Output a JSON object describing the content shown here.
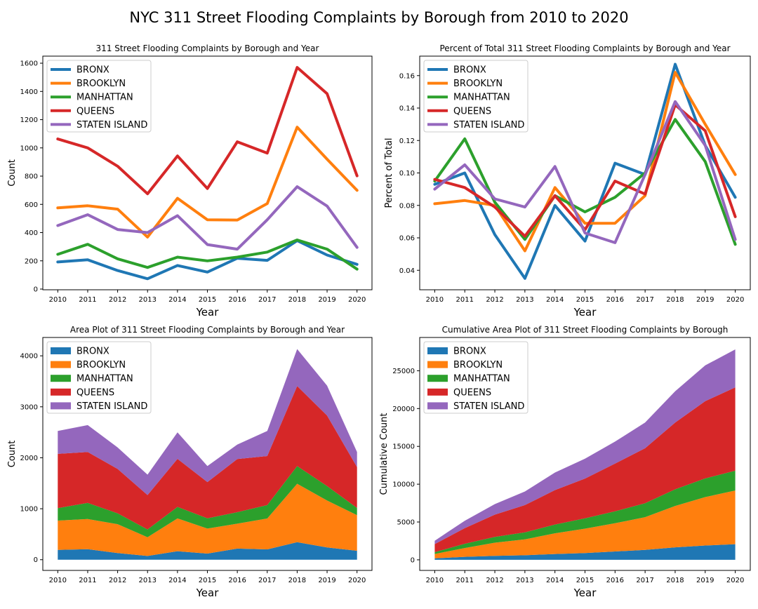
{
  "suptitle": "NYC 311 Street Flooding Complaints by Borough from 2010 to 2020",
  "colors": {
    "BRONX": "#1f77b4",
    "BROOKLYN": "#ff7f0e",
    "MANHATTAN": "#2ca02c",
    "QUEENS": "#d62728",
    "STATEN ISLAND": "#9467bd"
  },
  "chart_data": [
    {
      "type": "line",
      "title": "311 Street Flooding Complaints by Borough and Year",
      "xlabel": "Year",
      "ylabel": "Count",
      "x": [
        2010,
        2011,
        2012,
        2013,
        2014,
        2015,
        2016,
        2017,
        2018,
        2019,
        2020
      ],
      "xlim": [
        2009.5,
        2020.5
      ],
      "ylim": [
        -5,
        1650
      ],
      "yticks": [
        0,
        200,
        400,
        600,
        800,
        1000,
        1200,
        1400,
        1600
      ],
      "legend": "upper left",
      "series": [
        {
          "name": "BRONX",
          "values": [
            192,
            207,
            131,
            73,
            167,
            120,
            218,
            203,
            343,
            241,
            175
          ]
        },
        {
          "name": "BROOKLYN",
          "values": [
            575,
            590,
            566,
            368,
            643,
            491,
            489,
            606,
            1147,
            920,
            699
          ]
        },
        {
          "name": "MANHATTAN",
          "values": [
            246,
            317,
            214,
            153,
            226,
            200,
            226,
            262,
            348,
            283,
            141
          ]
        },
        {
          "name": "QUEENS",
          "values": [
            1063,
            1000,
            870,
            675,
            943,
            712,
            1043,
            963,
            1570,
            1384,
            802
          ]
        },
        {
          "name": "STATEN ISLAND",
          "values": [
            450,
            527,
            422,
            400,
            520,
            315,
            283,
            491,
            725,
            588,
            295
          ]
        }
      ]
    },
    {
      "type": "line",
      "title": "Percent of Total 311 Street Flooding Complaints by Borough and Year",
      "xlabel": "Year",
      "ylabel": "Percent of Total",
      "x": [
        2010,
        2011,
        2012,
        2013,
        2014,
        2015,
        2016,
        2017,
        2018,
        2019,
        2020
      ],
      "xlim": [
        2009.5,
        2020.5
      ],
      "ylim": [
        0.028,
        0.172
      ],
      "yticks": [
        0.04,
        0.06,
        0.08,
        0.1,
        0.12,
        0.14,
        0.16
      ],
      "legend": "upper left",
      "series": [
        {
          "name": "BRONX",
          "values": [
            0.093,
            0.1,
            0.062,
            0.035,
            0.08,
            0.058,
            0.106,
            0.099,
            0.167,
            0.117,
            0.085
          ]
        },
        {
          "name": "BROOKLYN",
          "values": [
            0.081,
            0.083,
            0.08,
            0.052,
            0.091,
            0.069,
            0.069,
            0.086,
            0.162,
            0.13,
            0.099
          ]
        },
        {
          "name": "MANHATTAN",
          "values": [
            0.095,
            0.121,
            0.082,
            0.059,
            0.086,
            0.076,
            0.085,
            0.1,
            0.133,
            0.107,
            0.056
          ]
        },
        {
          "name": "QUEENS",
          "values": [
            0.096,
            0.091,
            0.079,
            0.061,
            0.086,
            0.065,
            0.095,
            0.087,
            0.142,
            0.126,
            0.073
          ]
        },
        {
          "name": "STATEN ISLAND",
          "values": [
            0.09,
            0.105,
            0.084,
            0.079,
            0.104,
            0.063,
            0.057,
            0.099,
            0.144,
            0.117,
            0.059
          ]
        }
      ]
    },
    {
      "type": "area",
      "stacked": true,
      "title": "Area Plot of 311 Street Flooding Complaints by Borough and Year",
      "xlabel": "Year",
      "ylabel": "Count",
      "x": [
        2010,
        2011,
        2012,
        2013,
        2014,
        2015,
        2016,
        2017,
        2018,
        2019,
        2020
      ],
      "xlim": [
        2009.5,
        2020.5
      ],
      "ylim": [
        -210,
        4360
      ],
      "yticks": [
        0,
        1000,
        2000,
        3000,
        4000
      ],
      "legend": "upper left",
      "series": [
        {
          "name": "BRONX",
          "values": [
            192,
            207,
            131,
            73,
            167,
            120,
            218,
            203,
            343,
            241,
            175
          ]
        },
        {
          "name": "BROOKLYN",
          "values": [
            575,
            590,
            566,
            368,
            643,
            491,
            489,
            606,
            1147,
            920,
            699
          ]
        },
        {
          "name": "MANHATTAN",
          "values": [
            246,
            317,
            214,
            153,
            226,
            200,
            226,
            262,
            348,
            283,
            141
          ]
        },
        {
          "name": "QUEENS",
          "values": [
            1063,
            1000,
            870,
            675,
            943,
            712,
            1043,
            963,
            1570,
            1384,
            802
          ]
        },
        {
          "name": "STATEN ISLAND",
          "values": [
            450,
            527,
            422,
            400,
            520,
            315,
            283,
            491,
            725,
            588,
            295
          ]
        }
      ]
    },
    {
      "type": "area",
      "stacked": true,
      "title": "Cumulative Area Plot of 311 Street Flooding Complaints by Borough",
      "xlabel": "Year",
      "ylabel": "Cumulative Count",
      "x": [
        2010,
        2011,
        2012,
        2013,
        2014,
        2015,
        2016,
        2017,
        2018,
        2019,
        2020
      ],
      "xlim": [
        2009.5,
        2020.5
      ],
      "ylim": [
        -1400,
        29400
      ],
      "yticks": [
        0,
        5000,
        10000,
        15000,
        20000,
        25000
      ],
      "legend": "upper left",
      "series": [
        {
          "name": "BRONX",
          "values": [
            192,
            399,
            530,
            603,
            770,
            890,
            1108,
            1311,
            1654,
            1895,
            2070
          ]
        },
        {
          "name": "BROOKLYN",
          "values": [
            575,
            1165,
            1731,
            2099,
            2742,
            3233,
            3722,
            4328,
            5475,
            6395,
            7094
          ]
        },
        {
          "name": "MANHATTAN",
          "values": [
            246,
            563,
            777,
            930,
            1156,
            1356,
            1582,
            1844,
            2192,
            2475,
            2616
          ]
        },
        {
          "name": "QUEENS",
          "values": [
            1063,
            2063,
            2933,
            3608,
            4551,
            5263,
            6306,
            7269,
            8839,
            10223,
            11025
          ]
        },
        {
          "name": "STATEN ISLAND",
          "values": [
            450,
            977,
            1399,
            1799,
            2319,
            2634,
            2917,
            3408,
            4133,
            4721,
            5016
          ]
        }
      ]
    }
  ]
}
